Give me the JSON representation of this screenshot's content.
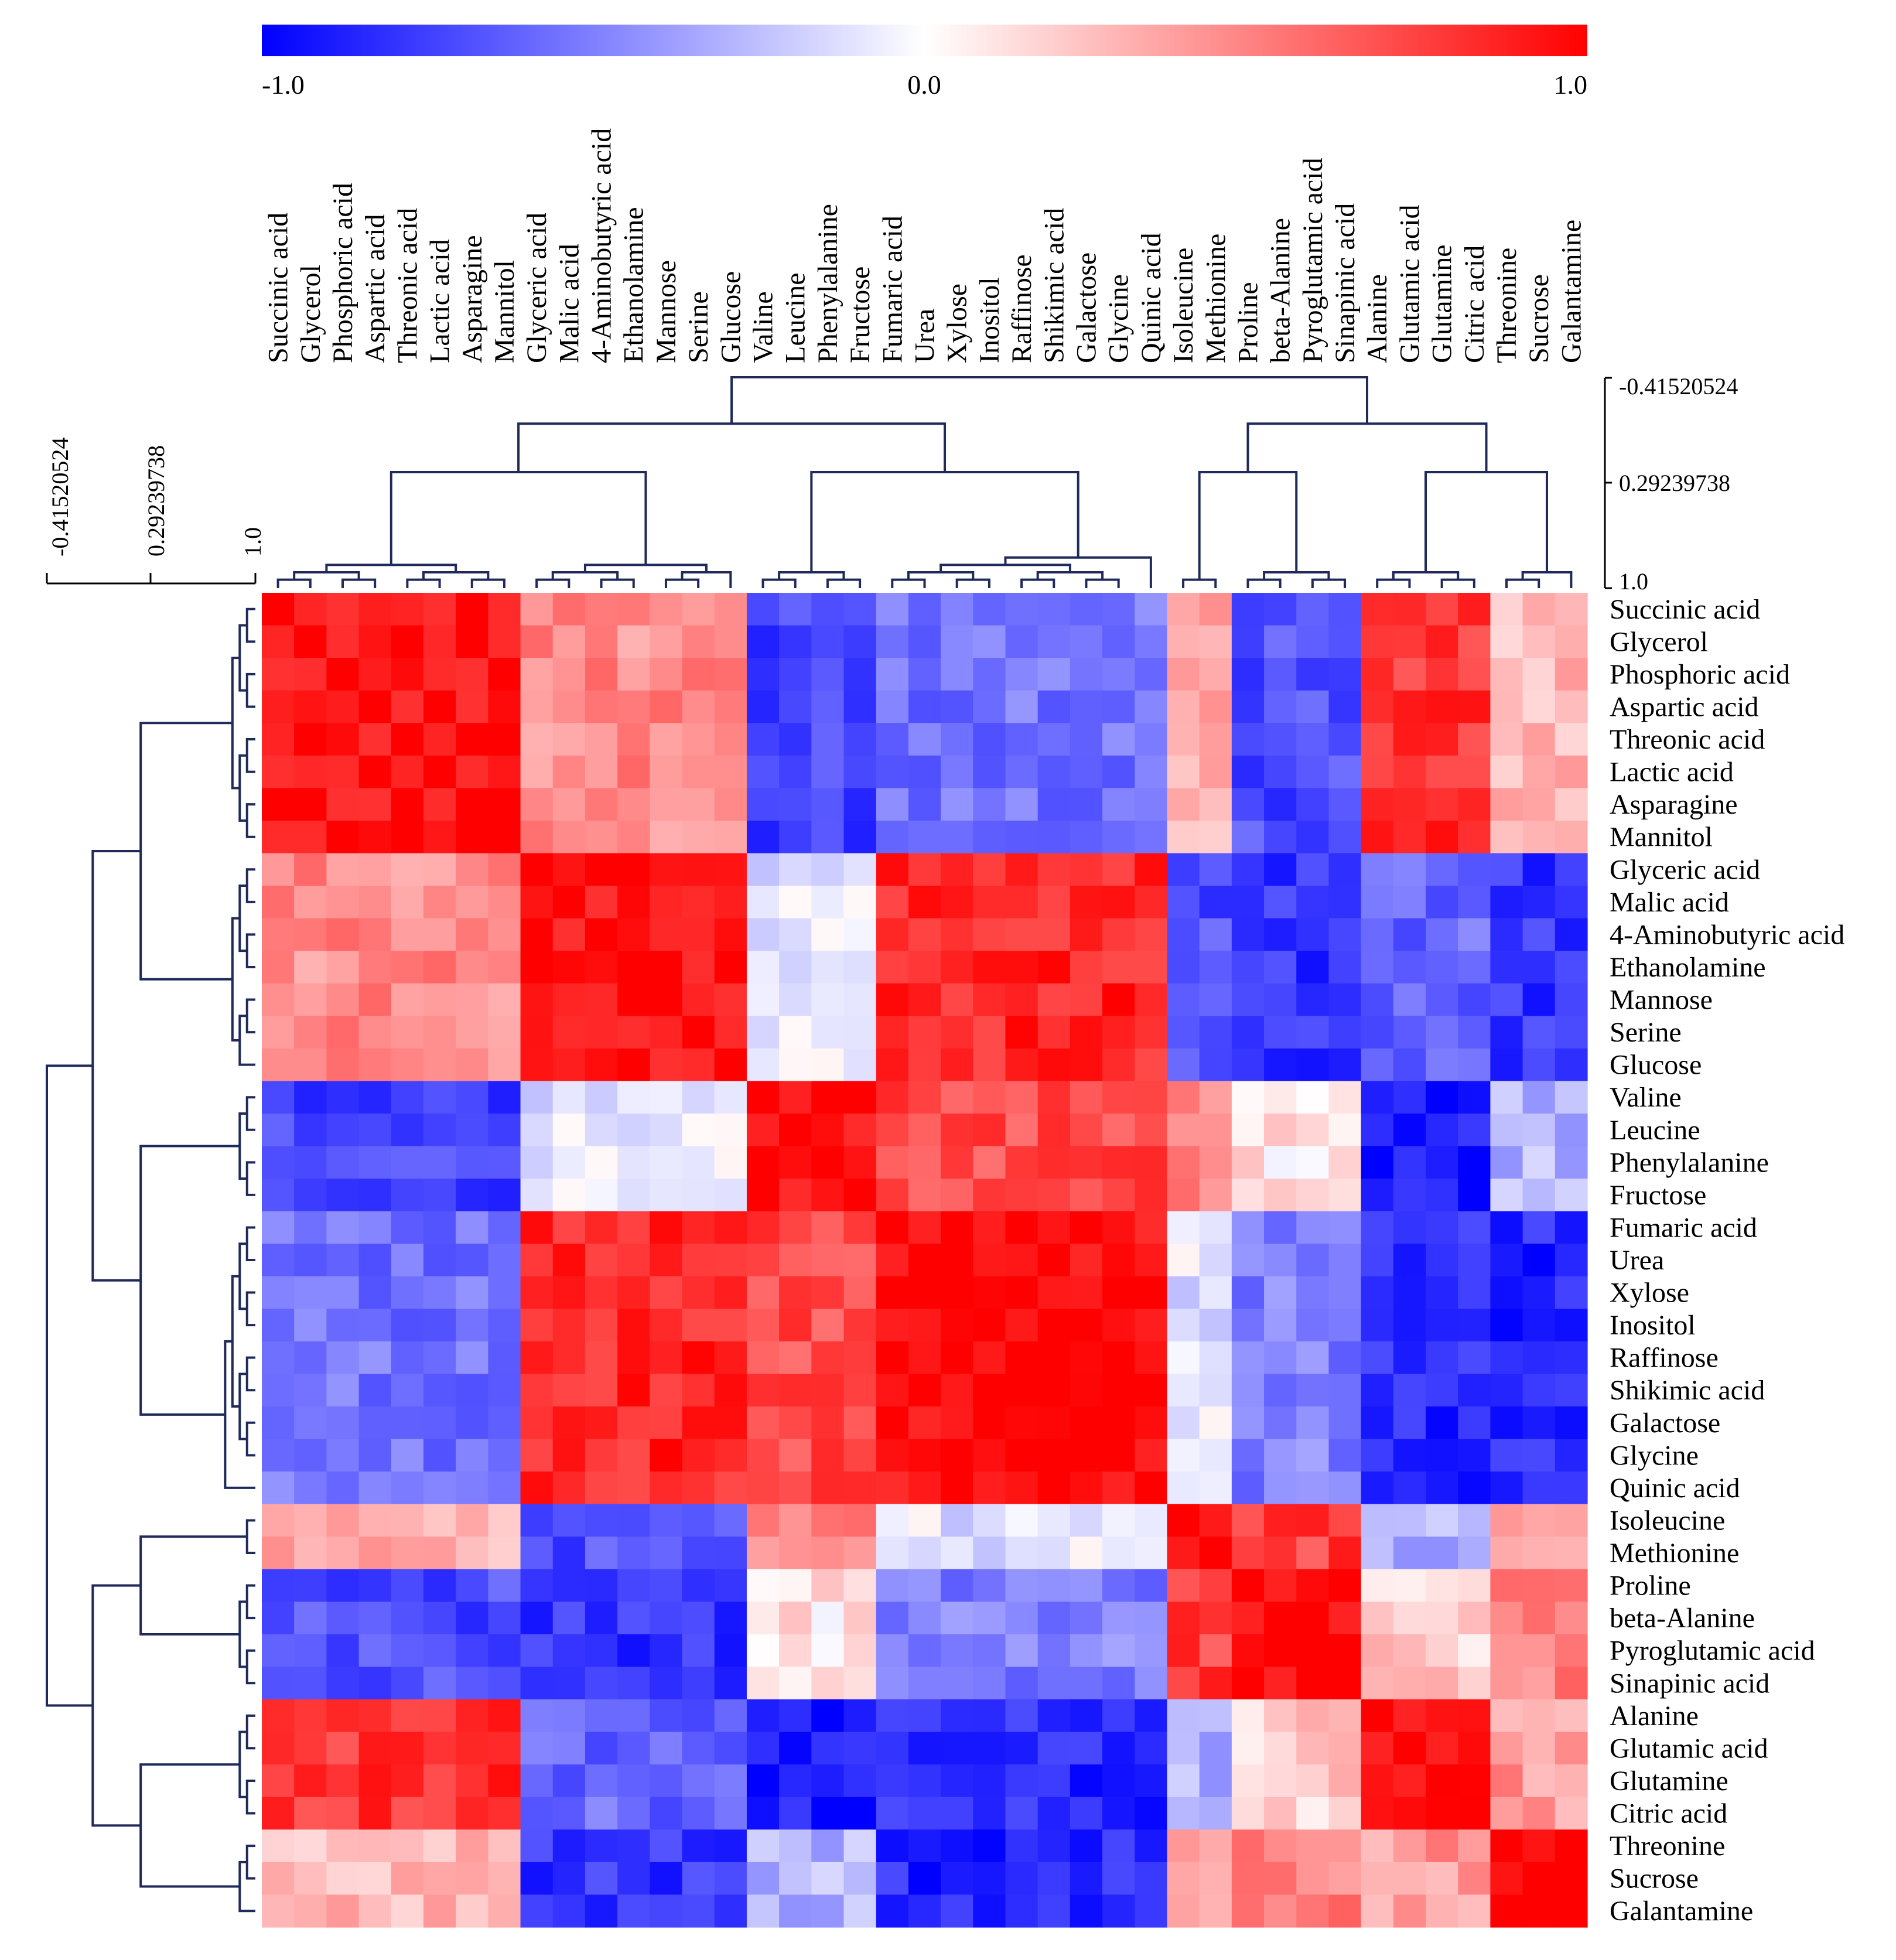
{
  "chart_data": {
    "type": "heatmap",
    "title": "",
    "colorbar": {
      "min_label": "-1.0",
      "mid_label": "0.0",
      "max_label": "1.0",
      "low_color": "#0000ff",
      "mid_color": "#ffffff",
      "high_color": "#ff0000",
      "range": [
        -1.0,
        1.0
      ]
    },
    "dendrogram_scale": [
      "-0.41520524",
      "0.29239738",
      "1.0"
    ],
    "labels": [
      "Succinic acid",
      "Glycerol",
      "Phosphoric acid",
      "Aspartic acid",
      "Threonic acid",
      "Lactic acid",
      "Asparagine",
      "Mannitol",
      "Glyceric acid",
      "Malic acid",
      "4-Aminobutyric acid",
      "Ethanolamine",
      "Mannose",
      "Serine",
      "Glucose",
      "Valine",
      "Leucine",
      "Phenylalanine",
      "Fructose",
      "Fumaric acid",
      "Urea",
      "Xylose",
      "Inositol",
      "Raffinose",
      "Shikimic acid",
      "Galactose",
      "Glycine",
      "Quinic acid",
      "Isoleucine",
      "Methionine",
      "Proline",
      "beta-Alanine",
      "Pyroglutamic acid",
      "Sinapinic acid",
      "Alanine",
      "Glutamic acid",
      "Glutamine",
      "Citric acid",
      "Threonine",
      "Sucrose",
      "Galantamine"
    ],
    "cluster_of_label": [
      0,
      0,
      0,
      0,
      0,
      0,
      0,
      0,
      1,
      1,
      1,
      1,
      1,
      1,
      1,
      2,
      2,
      2,
      2,
      3,
      3,
      3,
      3,
      3,
      3,
      3,
      3,
      3,
      4,
      4,
      5,
      5,
      5,
      5,
      6,
      6,
      6,
      6,
      7,
      7,
      7
    ],
    "cluster_correlation_matrix": [
      [
        0.95,
        0.45,
        -0.75,
        -0.55,
        0.3,
        -0.7,
        0.8,
        0.25
      ],
      [
        0.45,
        0.95,
        -0.1,
        0.85,
        -0.7,
        -0.8,
        -0.6,
        -0.8
      ],
      [
        -0.75,
        -0.1,
        0.95,
        0.7,
        0.5,
        0.1,
        -0.9,
        -0.3
      ],
      [
        -0.55,
        0.85,
        0.7,
        0.97,
        -0.1,
        -0.5,
        -0.85,
        -0.85
      ],
      [
        0.3,
        -0.7,
        0.5,
        -0.1,
        0.95,
        0.75,
        -0.3,
        0.3
      ],
      [
        -0.7,
        -0.8,
        0.1,
        -0.5,
        0.75,
        0.95,
        0.2,
        0.5
      ],
      [
        0.8,
        -0.6,
        -0.9,
        -0.85,
        -0.3,
        0.2,
        0.95,
        0.4
      ],
      [
        0.25,
        -0.8,
        -0.3,
        -0.85,
        0.3,
        0.5,
        0.4,
        0.9
      ]
    ],
    "dendrogram_merge_order": [
      [
        [
          0,
          1
        ],
        [
          2,
          3
        ]
      ],
      [
        [
          4,
          5
        ],
        [
          6,
          7
        ]
      ]
    ]
  }
}
